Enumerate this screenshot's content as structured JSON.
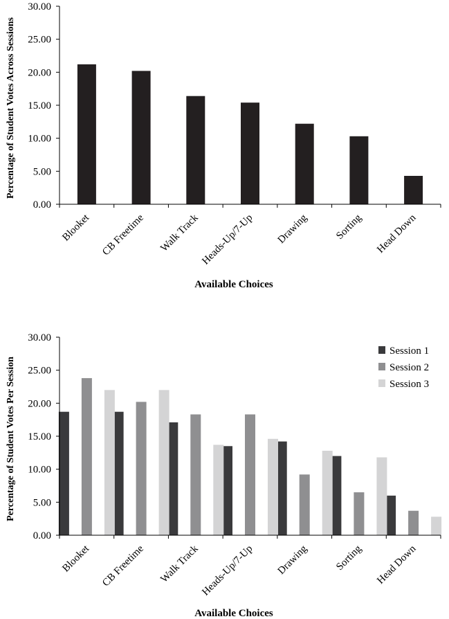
{
  "chart_data": [
    {
      "type": "bar",
      "title": "",
      "categories": [
        "Blooket",
        "CB Freetime",
        "Walk Track",
        "Heads-Up/7-Up",
        "Drawing",
        "Sorting",
        "Head Down"
      ],
      "series": [
        {
          "name": "Across Sessions",
          "color": "#231f20",
          "values": [
            21.2,
            20.2,
            16.4,
            15.4,
            12.2,
            10.3,
            4.3
          ]
        }
      ],
      "xlabel": "Available Choices",
      "ylabel": "Percentage of Student Votes Across Sessions",
      "ylim": [
        0,
        30
      ],
      "yticks": [
        "0.00",
        "5.00",
        "10.00",
        "15.00",
        "20.00",
        "25.00",
        "30.00"
      ],
      "grid": false,
      "legend": null
    },
    {
      "type": "bar",
      "title": "",
      "categories": [
        "Blooket",
        "CB Freetime",
        "Walk Track",
        "Heads-Up/7-Up",
        "Drawing",
        "Sorting",
        "Head Down"
      ],
      "series": [
        {
          "name": "Session 1",
          "color": "#3a3a3c",
          "values": [
            18.7,
            18.7,
            17.1,
            13.5,
            14.2,
            12.0,
            6.0
          ]
        },
        {
          "name": "Session 2",
          "color": "#8f8f91",
          "values": [
            23.8,
            20.2,
            18.3,
            18.3,
            9.2,
            6.5,
            3.7
          ]
        },
        {
          "name": "Session 3",
          "color": "#d4d4d5",
          "values": [
            22.0,
            22.0,
            13.7,
            14.6,
            12.8,
            11.8,
            2.8
          ]
        }
      ],
      "xlabel": "Available Choices",
      "ylabel": "Percentage of Student Votes Per Session",
      "ylim": [
        0,
        30
      ],
      "yticks": [
        "0.00",
        "5.00",
        "10.00",
        "15.00",
        "20.00",
        "25.00",
        "30.00"
      ],
      "grid": false,
      "legend": "top-right"
    }
  ]
}
